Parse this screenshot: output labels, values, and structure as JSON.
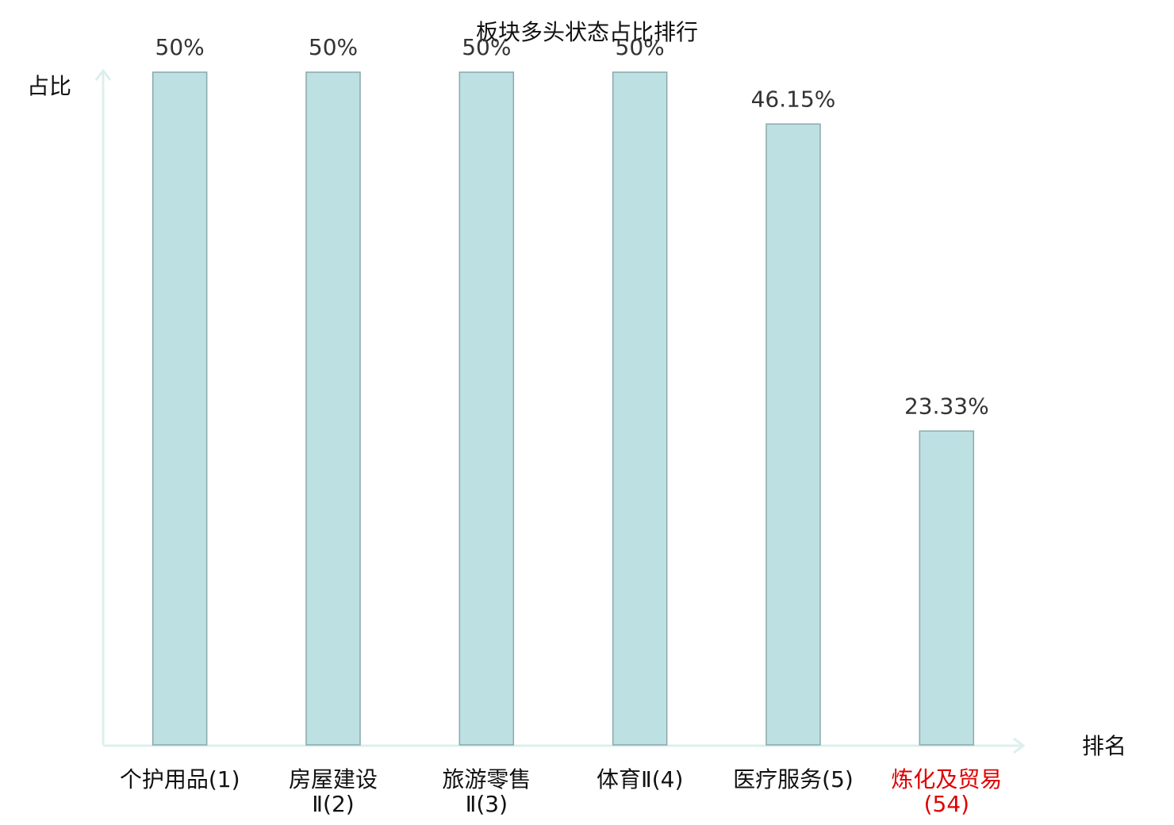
{
  "chart_data": {
    "type": "bar",
    "title": "板块多头状态占比排行",
    "x_label": "排名",
    "y_label": "占比",
    "categories": [
      "个护用品(1)",
      "房屋建设Ⅱ(2)",
      "旅游零售Ⅱ(3)",
      "体育Ⅱ(4)",
      "医疗服务(5)",
      "炼化及贸易(54)"
    ],
    "values": [
      50,
      50,
      50,
      50,
      46.15,
      23.33
    ],
    "value_labels": [
      "50%",
      "50%",
      "50%",
      "50%",
      "46.15%",
      "23.33%"
    ],
    "color": "#bde0e3",
    "edge_color": "#8aa9ab",
    "axis_color": "#dcefec",
    "label_colors": [
      "#111111",
      "#111111",
      "#111111",
      "#111111",
      "#111111",
      "#e00000"
    ],
    "ylim": [
      0,
      50
    ]
  }
}
